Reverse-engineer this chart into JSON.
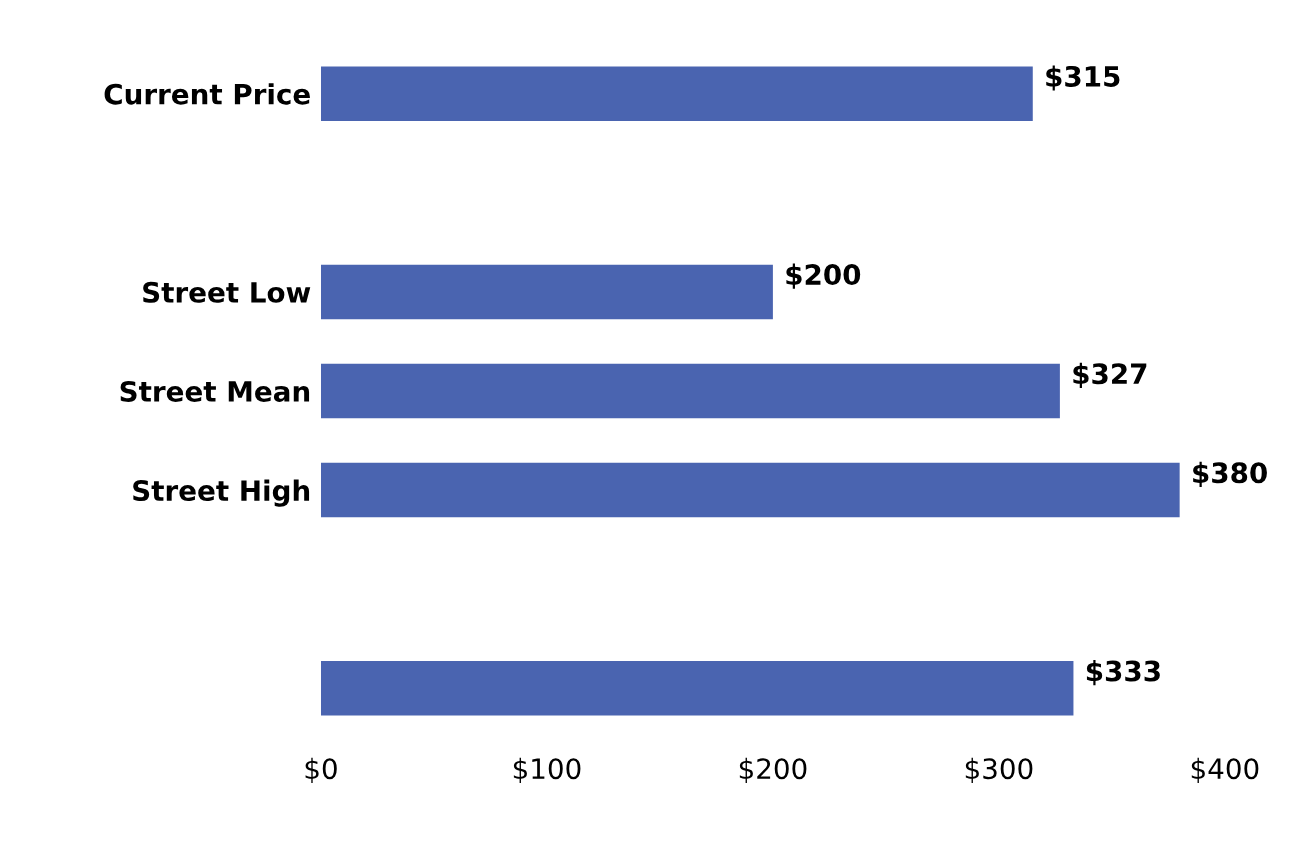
{
  "chart_data": {
    "type": "bar",
    "orientation": "horizontal",
    "categories": [
      "Current Price",
      null,
      "Street Low",
      "Street Mean",
      "Street High",
      null,
      null
    ],
    "values": [
      315,
      null,
      200,
      327,
      380,
      null,
      333
    ],
    "value_labels": [
      "$315",
      null,
      "$200",
      "$327",
      "$380",
      null,
      "$333"
    ],
    "color": "#4a64b0",
    "xlim": [
      0,
      400
    ],
    "xticks": [
      {
        "value": 0,
        "label": "$0"
      },
      {
        "value": 100,
        "label": "$100"
      },
      {
        "value": 200,
        "label": "$200"
      },
      {
        "value": 300,
        "label": "$300"
      },
      {
        "value": 400,
        "label": "$400"
      }
    ],
    "grid": false,
    "legend": false
  }
}
